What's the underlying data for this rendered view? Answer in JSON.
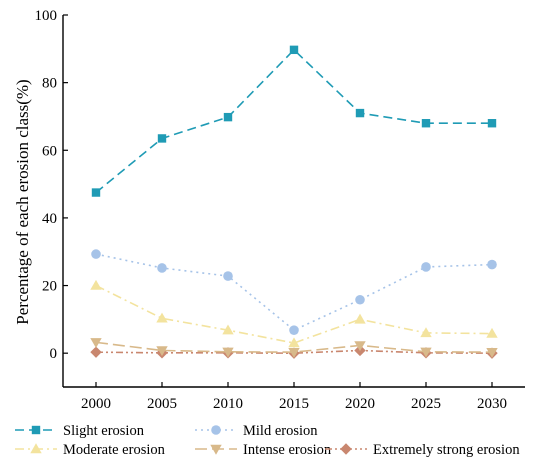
{
  "chart_data": {
    "type": "line",
    "x": [
      "2000",
      "2005",
      "2010",
      "2015",
      "2020",
      "2025",
      "2030"
    ],
    "ylabel": "Percentage of each erosion class(%)",
    "ylim": [
      -10,
      100
    ],
    "yticks": [
      0,
      20,
      40,
      60,
      80,
      100
    ],
    "grid": false,
    "legend_position": "bottom",
    "series": [
      {
        "name": "Slight erosion",
        "marker": "square",
        "dash": "dashed",
        "color": "#1f9bb5",
        "values": [
          47.5,
          63.5,
          69.8,
          89.7,
          71.0,
          68.0,
          68.0
        ]
      },
      {
        "name": "Mild erosion",
        "marker": "circle",
        "dash": "dotted",
        "color": "#a6c3e8",
        "values": [
          29.3,
          25.2,
          22.8,
          6.8,
          15.8,
          25.5,
          26.2
        ]
      },
      {
        "name": "Moderate erosion",
        "marker": "triangle-up",
        "dash": "dashdot",
        "color": "#f3e39e",
        "values": [
          20.0,
          10.3,
          6.8,
          3.0,
          10.0,
          6.0,
          5.8
        ]
      },
      {
        "name": "Intense erosion",
        "marker": "triangle-down",
        "dash": "longdash",
        "color": "#d8b98a",
        "values": [
          3.2,
          0.8,
          0.4,
          0.3,
          2.3,
          0.4,
          0.3
        ]
      },
      {
        "name": "Extremely strong erosion",
        "marker": "diamond",
        "dash": "dashdotdot",
        "color": "#c9876f",
        "values": [
          0.3,
          0.1,
          0.1,
          0.0,
          0.8,
          0.1,
          0.0
        ]
      }
    ]
  }
}
